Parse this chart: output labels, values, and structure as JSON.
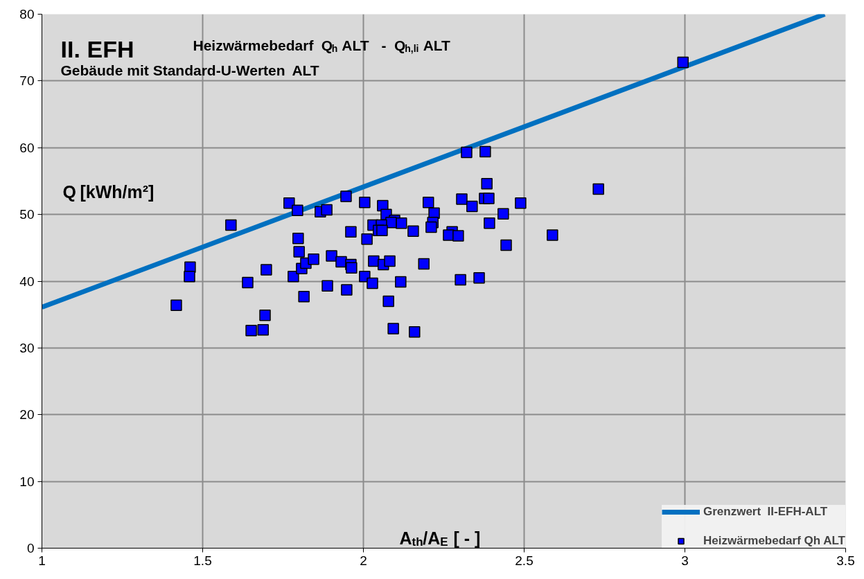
{
  "chart_data": {
    "type": "scatter",
    "title": "II. EFH",
    "subtitle": "Heizwärmebedarf Q$_{h}$ ALT  -  Q$_{h,li}$ ALT",
    "annotations": [
      "Gebäude mit Standard-U-Werten ALT"
    ],
    "xlabel": "A$_{th}$/A$_{E}$ [ - ]",
    "ylabel": "Q [kWh/m²]",
    "xlim": [
      1,
      3.5
    ],
    "ylim": [
      0,
      80
    ],
    "xticks": [
      1,
      1.5,
      2,
      2.5,
      3,
      3.5
    ],
    "yticks": [
      0,
      10,
      20,
      30,
      40,
      50,
      60,
      70,
      80
    ],
    "grid": true,
    "legend": "bottom right",
    "series": [
      {
        "type": "line",
        "name": "Grenzwert  II-EFH-ALT",
        "color": "#0070c0",
        "x": [
          1,
          3.435
        ],
        "values": [
          36.1,
          80
        ]
      },
      {
        "name": "Heizwärmebedarf Qh ALT",
        "color": "#0000ff",
        "marker": "square",
        "x": [
          1.418,
          1.461,
          1.459,
          1.588,
          1.651,
          1.688,
          1.694,
          1.64,
          1.698,
          1.769,
          1.795,
          1.797,
          1.8,
          1.782,
          1.808,
          1.821,
          1.815,
          1.845,
          1.866,
          1.886,
          1.901,
          1.931,
          1.888,
          1.946,
          2.004,
          2.06,
          2.071,
          2.097,
          2.118,
          2.086,
          2.03,
          2.056,
          2.047,
          2.058,
          1.961,
          2.155,
          2.011,
          2.202,
          2.22,
          2.216,
          2.211,
          2.306,
          2.338,
          2.321,
          2.379,
          2.384,
          2.377,
          2.39,
          2.489,
          2.435,
          2.392,
          2.276,
          2.265,
          2.295,
          2.444,
          1.961,
          1.963,
          2.032,
          2.062,
          2.082,
          2.188,
          2.004,
          2.028,
          2.116,
          2.302,
          2.36,
          1.948,
          2.078,
          2.093,
          2.159,
          2.588,
          2.731,
          2.994
        ],
        "values": [
          36.4,
          42.1,
          40.7,
          48.4,
          32.6,
          32.7,
          34.9,
          39.8,
          41.7,
          51.7,
          50.6,
          46.4,
          44.4,
          40.7,
          41.9,
          42.7,
          37.7,
          43.3,
          50.4,
          50.7,
          43.8,
          42.9,
          39.3,
          52.7,
          51.8,
          51.3,
          50.0,
          49.1,
          48.7,
          48.8,
          48.4,
          48.4,
          47.6,
          47.6,
          47.4,
          47.5,
          46.3,
          51.8,
          50.2,
          48.8,
          48.1,
          52.3,
          51.2,
          59.3,
          59.4,
          54.6,
          52.4,
          52.4,
          51.7,
          50.1,
          48.7,
          47.4,
          46.9,
          46.8,
          45.4,
          42.5,
          42.0,
          43.0,
          42.5,
          43.0,
          42.6,
          40.7,
          39.7,
          39.9,
          40.2,
          40.5,
          38.7,
          37.0,
          32.9,
          32.4,
          46.9,
          53.8,
          72.8
        ]
      }
    ]
  }
}
